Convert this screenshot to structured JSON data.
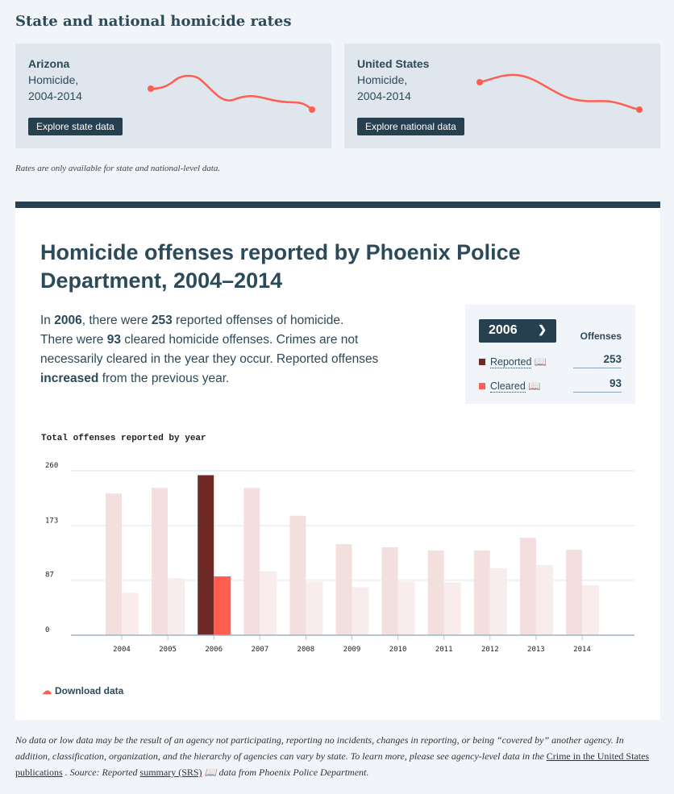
{
  "header": {
    "title": "State and national homicide rates"
  },
  "cards": [
    {
      "name": "Arizona",
      "sub1": "Homicide,",
      "sub2": "2004-2014",
      "button": "Explore state data"
    },
    {
      "name": "United States",
      "sub1": "Homicide,",
      "sub2": "2004-2014",
      "button": "Explore national data"
    }
  ],
  "rates_note": "Rates are only available for state and national-level data.",
  "panel": {
    "title": "Homicide offenses reported by Phoenix Police Department, 2004–2014",
    "desc": {
      "p1": "In ",
      "year": "2006",
      "p2": ", there were ",
      "reported": "253",
      "p3": " reported offenses of homicide. There were ",
      "cleared": "93",
      "p4": " cleared homicide offenses. Crimes are not necessarily cleared in the year they occur. Reported offenses ",
      "trend": "increased",
      "p5": " from the previous year."
    },
    "selector": {
      "value": "2006",
      "col_header": "Offenses",
      "rows": [
        {
          "label": "Reported",
          "value": "253"
        },
        {
          "label": "Cleared",
          "value": "93"
        }
      ]
    },
    "download": "Download data"
  },
  "chart_data": {
    "type": "bar",
    "title": "Total offenses reported by year",
    "categories": [
      "2004",
      "2005",
      "2006",
      "2007",
      "2008",
      "2009",
      "2010",
      "2011",
      "2012",
      "2013",
      "2014"
    ],
    "series": [
      {
        "name": "Reported",
        "values": [
          224,
          233,
          253,
          233,
          189,
          144,
          139,
          134,
          134,
          154,
          135
        ]
      },
      {
        "name": "Cleared",
        "values": [
          67,
          90,
          93,
          101,
          85,
          76,
          85,
          83,
          106,
          111,
          79
        ]
      }
    ],
    "highlight": "2006",
    "yticks": [
      0,
      87,
      173,
      260
    ],
    "ylim": [
      0,
      260
    ],
    "grid": true,
    "colors": {
      "reported": "#6f2a27",
      "cleared": "#ff5e50",
      "reported_dim": "#f4dfdf",
      "cleared_dim": "#f9ecec"
    }
  },
  "footer": {
    "text1": "No data or low data may be the result of an agency not participating, reporting no incidents, changes in reporting, or being “covered by” another agency. In addition, classification, organization, and the hierarchy of agencies can vary by state. To learn more, please see agency-level data in the ",
    "link1": "Crime in the United States publications",
    "text2": " . Source: Reported ",
    "link2": "summary (SRS)",
    "text3": " data from Phoenix Police Department."
  }
}
